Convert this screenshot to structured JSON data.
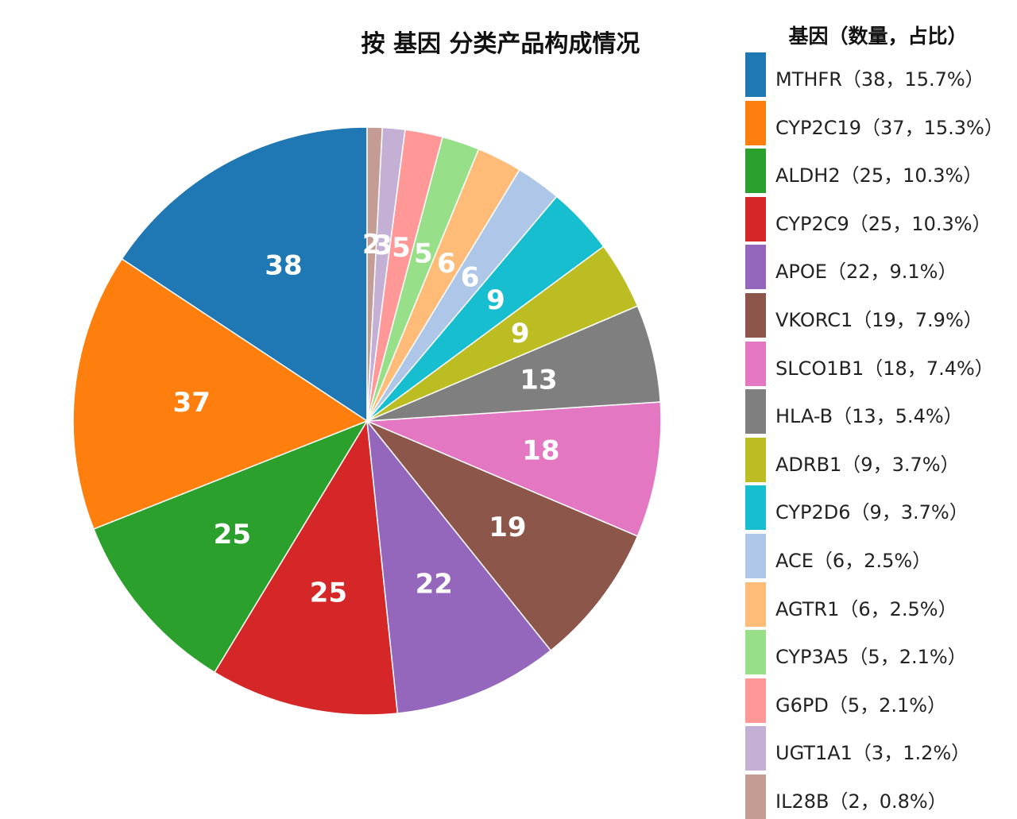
{
  "chart_data": {
    "type": "pie",
    "title": "按 基因 分类产品构成情况",
    "legend_title": "基因（数量，占比）",
    "legend_position": "right",
    "slices": [
      {
        "label": "MTHFR",
        "value": 38,
        "legend": "MTHFR（38，15.7%）",
        "color": "#1f77b4"
      },
      {
        "label": "CYP2C19",
        "value": 37,
        "legend": "CYP2C19（37，15.3%）",
        "color": "#ff7f0e"
      },
      {
        "label": "ALDH2",
        "value": 25,
        "legend": "ALDH2（25，10.3%）",
        "color": "#2ca02c"
      },
      {
        "label": "CYP2C9",
        "value": 25,
        "legend": "CYP2C9（25，10.3%）",
        "color": "#d62728"
      },
      {
        "label": "APOE",
        "value": 22,
        "legend": "APOE（22，9.1%）",
        "color": "#9467bd"
      },
      {
        "label": "VKORC1",
        "value": 19,
        "legend": "VKORC1（19，7.9%）",
        "color": "#8c564b"
      },
      {
        "label": "SLCO1B1",
        "value": 18,
        "legend": "SLCO1B1（18，7.4%）",
        "color": "#e377c2"
      },
      {
        "label": "HLA-B",
        "value": 13,
        "legend": "HLA-B（13，5.4%）",
        "color": "#7f7f7f"
      },
      {
        "label": "ADRB1",
        "value": 9,
        "legend": "ADRB1（9，3.7%）",
        "color": "#bcbd22"
      },
      {
        "label": "CYP2D6",
        "value": 9,
        "legend": "CYP2D6（9，3.7%）",
        "color": "#17becf"
      },
      {
        "label": "ACE",
        "value": 6,
        "legend": "ACE（6，2.5%）",
        "color": "#aec7e8"
      },
      {
        "label": "AGTR1",
        "value": 6,
        "legend": "AGTR1（6，2.5%）",
        "color": "#ffbb78"
      },
      {
        "label": "CYP3A5",
        "value": 5,
        "legend": "CYP3A5（5，2.1%）",
        "color": "#98df8a"
      },
      {
        "label": "G6PD",
        "value": 5,
        "legend": "G6PD（5，2.1%）",
        "color": "#ff9896"
      },
      {
        "label": "UGT1A1",
        "value": 3,
        "legend": "UGT1A1（3，1.2%）",
        "color": "#c5b0d5"
      },
      {
        "label": "IL28B",
        "value": 2,
        "legend": "IL28B（2，0.8%）",
        "color": "#c49c94"
      }
    ]
  }
}
